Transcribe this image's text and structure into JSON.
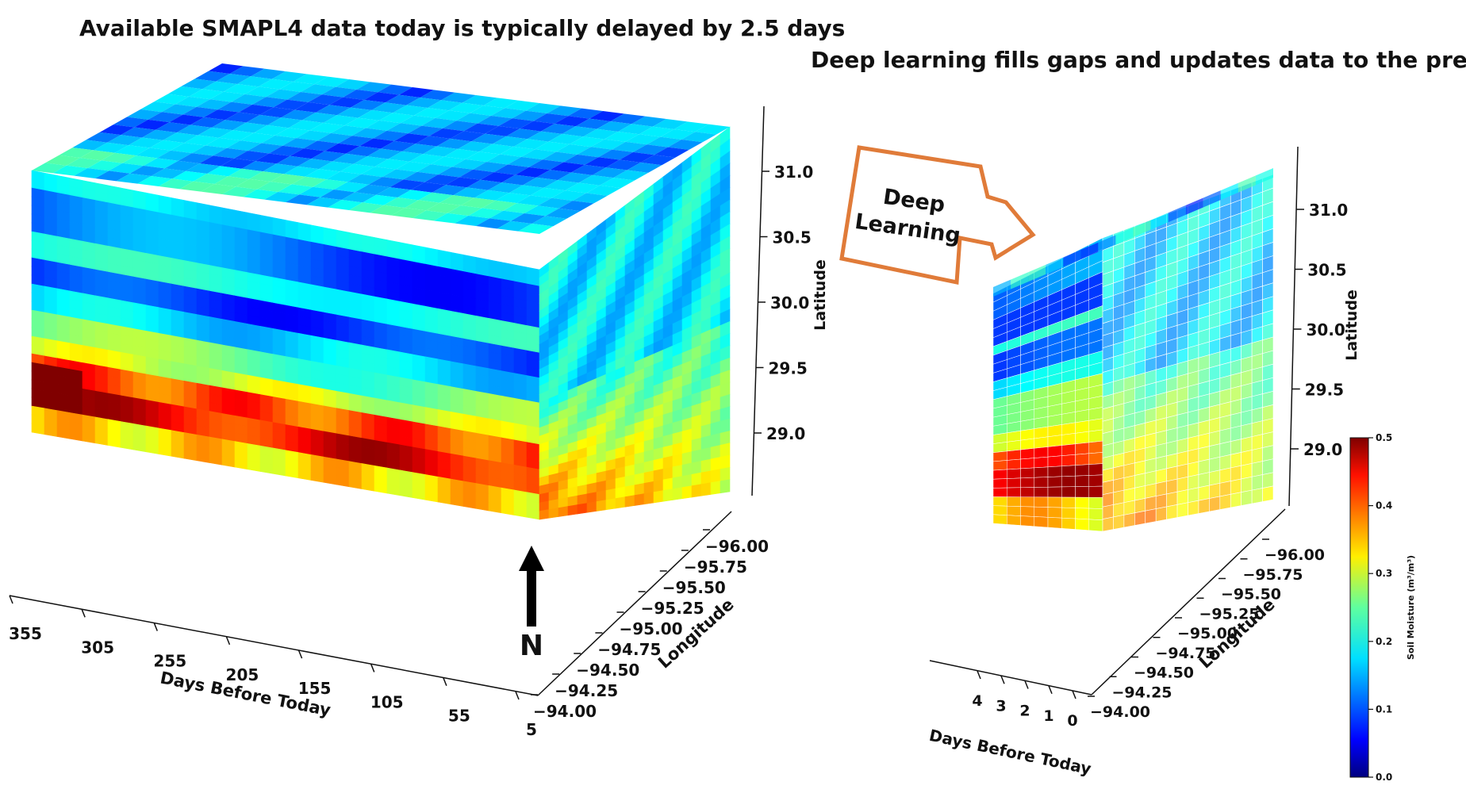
{
  "chart_data": [
    {
      "type": "3d-voxel",
      "title": "Available SMAPL4 data today is typically delayed by 2.5 days",
      "xlabel": "Days Before Today",
      "ylabel": "Longitude",
      "zlabel": "Latitude",
      "x_ticks": [
        "355",
        "305",
        "255",
        "205",
        "155",
        "105",
        "55",
        "5"
      ],
      "y_ticks": [
        "−96.00",
        "−95.75",
        "−95.50",
        "−95.25",
        "−95.00",
        "−94.75",
        "−94.50",
        "−94.25",
        "−94.00"
      ],
      "z_ticks": [
        "31.0",
        "30.5",
        "30.0",
        "29.5",
        "29.0"
      ],
      "xlim": [
        5,
        355
      ],
      "ylim": [
        -96.0,
        -94.0
      ],
      "zlim": [
        28.8,
        31.3
      ],
      "north_marker": "N"
    },
    {
      "type": "3d-voxel",
      "title": "Deep learning fills gaps and updates data to the present",
      "xlabel": "Days Before Today",
      "ylabel": "Longitude",
      "zlabel": "Latitude",
      "x_ticks": [
        "4",
        "3",
        "2",
        "1",
        "0"
      ],
      "y_ticks": [
        "−96.00",
        "−95.75",
        "−95.50",
        "−95.25",
        "−95.00",
        "−94.75",
        "−94.50",
        "−94.25",
        "−94.00"
      ],
      "z_ticks": [
        "31.0",
        "30.5",
        "30.0",
        "29.5",
        "29.0"
      ],
      "xlim": [
        0,
        4
      ],
      "ylim": [
        -96.0,
        -94.0
      ],
      "zlim": [
        28.8,
        31.3
      ],
      "colorbar": {
        "label": "Soil Moisture (m³/m³)",
        "ticks": [
          "0.5",
          "0.4",
          "0.3",
          "0.2",
          "0.1",
          "0.0"
        ],
        "range": [
          0.0,
          0.5
        ],
        "colormap": "jet"
      }
    }
  ],
  "arrow_label": {
    "line1": "Deep",
    "line2": "Learning",
    "color": "#e07b39"
  }
}
